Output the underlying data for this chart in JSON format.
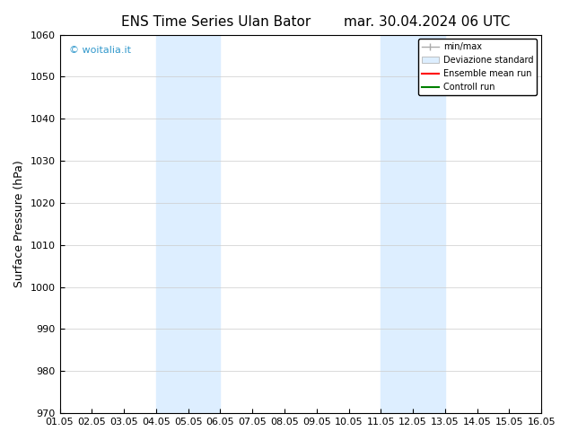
{
  "title_left": "ENS Time Series Ulan Bator",
  "title_right": "mar. 30.04.2024 06 UTC",
  "ylabel": "Surface Pressure (hPa)",
  "ylim": [
    970,
    1060
  ],
  "yticks": [
    970,
    980,
    990,
    1000,
    1010,
    1020,
    1030,
    1040,
    1050,
    1060
  ],
  "xlabels": [
    "01.05",
    "02.05",
    "03.05",
    "04.05",
    "05.05",
    "06.05",
    "07.05",
    "08.05",
    "09.05",
    "10.05",
    "11.05",
    "12.05",
    "13.05",
    "14.05",
    "15.05",
    "16.05"
  ],
  "x_values": [
    0,
    1,
    2,
    3,
    4,
    5,
    6,
    7,
    8,
    9,
    10,
    11,
    12,
    13,
    14,
    15
  ],
  "shaded_bands": [
    {
      "xmin": 3,
      "xmax": 5,
      "color": "#ddeeff"
    },
    {
      "xmin": 10,
      "xmax": 12,
      "color": "#ddeeff"
    }
  ],
  "watermark": "© woitalia.it",
  "watermark_color": "#3399cc",
  "legend_entries": [
    {
      "label": "min/max",
      "color": "#888888",
      "lw": 1.0,
      "ls": "-"
    },
    {
      "label": "Deviazione standard",
      "color": "#ccddee",
      "lw": 8,
      "ls": "-"
    },
    {
      "label": "Ensemble mean run",
      "color": "red",
      "lw": 1.0,
      "ls": "-"
    },
    {
      "label": "Controll run",
      "color": "green",
      "lw": 1.5,
      "ls": "-"
    }
  ],
  "background_color": "#ffffff",
  "plot_bg_color": "#ffffff",
  "border_color": "#000000",
  "title_fontsize": 11,
  "tick_fontsize": 8,
  "ylabel_fontsize": 9
}
